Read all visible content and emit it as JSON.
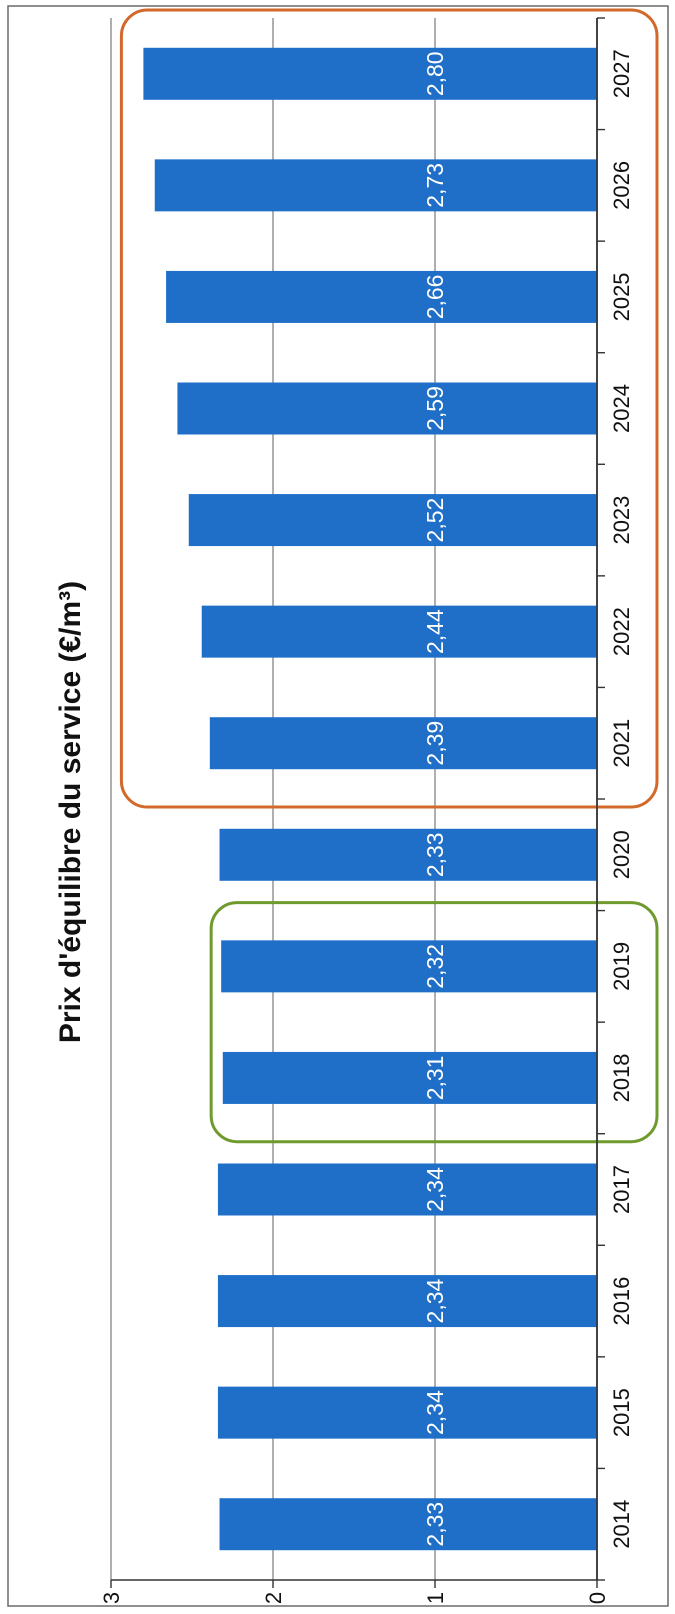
{
  "chart_data": {
    "type": "bar",
    "orientation": "vertical (page rotated 90° counter-clockwise)",
    "title": "Prix d'équilibre du service (€/m³)",
    "categories": [
      "2014",
      "2015",
      "2016",
      "2017",
      "2018",
      "2019",
      "2020",
      "2021",
      "2022",
      "2023",
      "2024",
      "2025",
      "2026",
      "2027"
    ],
    "values": [
      2.33,
      2.34,
      2.34,
      2.34,
      2.31,
      2.32,
      2.33,
      2.39,
      2.44,
      2.52,
      2.59,
      2.66,
      2.73,
      2.8
    ],
    "data_labels": [
      "2,33",
      "2,34",
      "2,34",
      "2,34",
      "2,31",
      "2,32",
      "2,33",
      "2,39",
      "2,44",
      "2,52",
      "2,59",
      "2,66",
      "2,73",
      "2,80"
    ],
    "ylim": [
      0,
      3
    ],
    "yticks": [
      0,
      1,
      2,
      3
    ],
    "ytick_labels": [
      "0",
      "1",
      "2",
      "3"
    ],
    "grid": true,
    "bar_color": "#1f6fc8",
    "highlights": [
      {
        "categories": [
          "2018",
          "2019"
        ],
        "color": "#6e9a2e"
      },
      {
        "categories": [
          "2021",
          "2022",
          "2023",
          "2024",
          "2025",
          "2026",
          "2027"
        ],
        "color": "#d2692a"
      }
    ]
  }
}
